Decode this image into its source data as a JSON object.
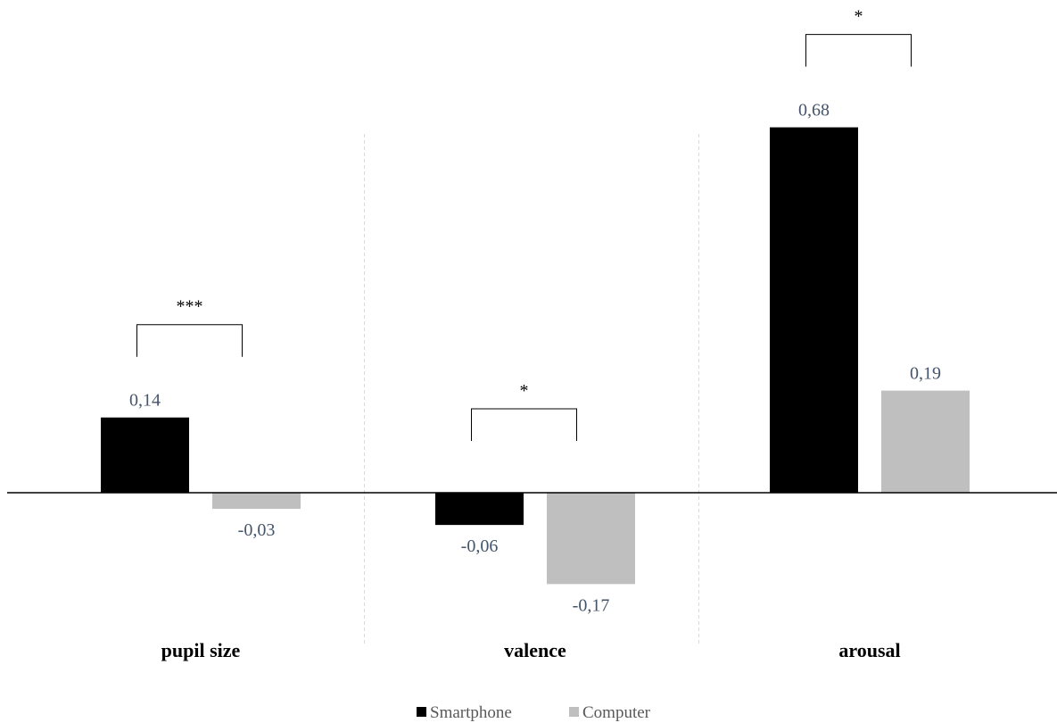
{
  "chart_data": {
    "type": "bar",
    "categories": [
      "pupil size",
      "valence",
      "arousal"
    ],
    "series": [
      {
        "name": "Smartphone",
        "color": "#000000",
        "values": [
          0.14,
          -0.06,
          0.68
        ],
        "labels": [
          "0,14",
          "-0,06",
          "0,68"
        ]
      },
      {
        "name": "Computer",
        "color": "#bfbfbf",
        "values": [
          -0.03,
          -0.17,
          0.19
        ],
        "labels": [
          "-0,03",
          "-0,17",
          "0,19"
        ]
      }
    ],
    "significance": [
      "***",
      "*",
      "*"
    ],
    "legend_position": "bottom",
    "axis_color": "#000000",
    "separator_color": "#d9d9d9",
    "label_color": "#44546a"
  }
}
